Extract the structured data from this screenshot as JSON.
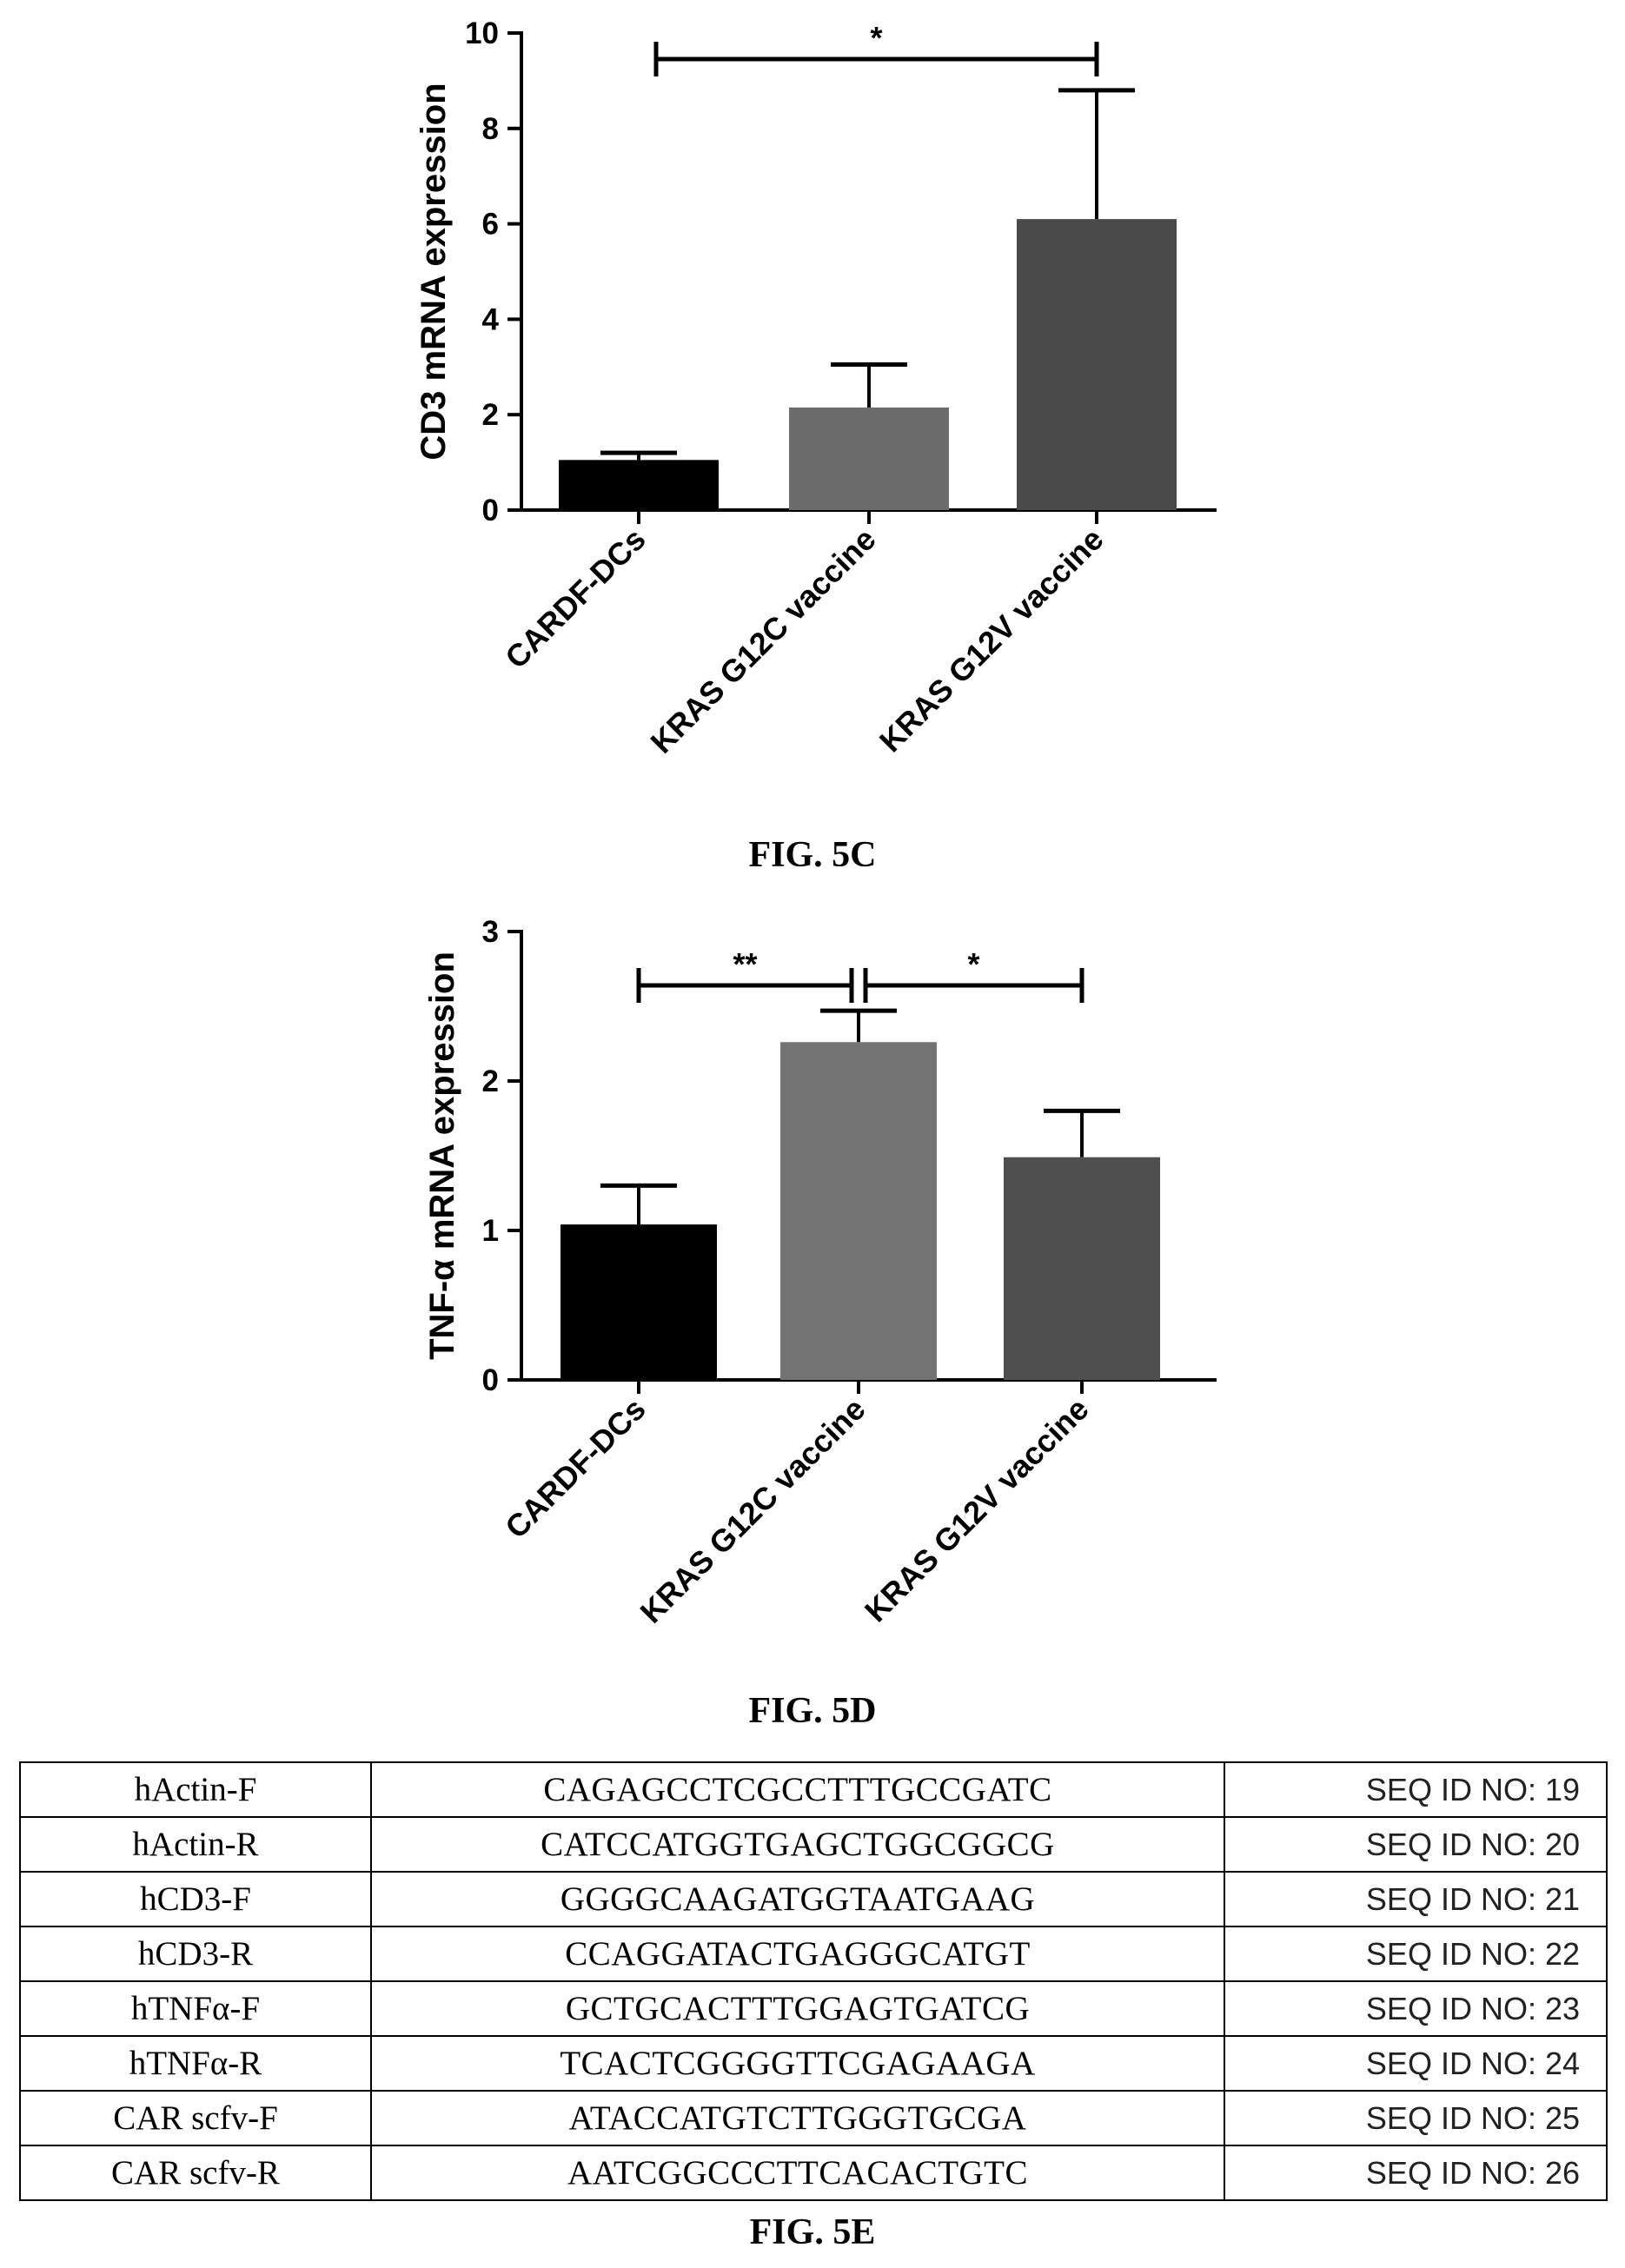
{
  "chart_data": [
    {
      "type": "bar",
      "categories": [
        "CARDF-DCs",
        "KRAS G12C vaccine",
        "KRAS G12V vaccine"
      ],
      "values": [
        1.05,
        2.15,
        6.1
      ],
      "errors": [
        0.15,
        0.9,
        2.7
      ],
      "bar_colors": [
        "#000000",
        "#6b6b6b",
        "#4a4a4a"
      ],
      "ylabel": "CD3 mRNA expression",
      "ylim": [
        0,
        10
      ],
      "yticks": [
        0,
        2,
        4,
        6,
        8,
        10
      ],
      "grid": false,
      "significance": [
        {
          "from": 0,
          "to": 2,
          "label": "*"
        }
      ],
      "caption": "FIG. 5C"
    },
    {
      "type": "bar",
      "categories": [
        "CARDF-DCs",
        "KRAS G12C vaccine",
        "KRAS G12V vaccine"
      ],
      "values": [
        1.04,
        2.26,
        1.49
      ],
      "errors": [
        0.26,
        0.21,
        0.31
      ],
      "bar_colors": [
        "#000000",
        "#737373",
        "#4f4f4f"
      ],
      "ylabel": "TNF-α mRNA expression",
      "ylim": [
        0,
        3
      ],
      "yticks": [
        0,
        1,
        2,
        3
      ],
      "grid": false,
      "significance": [
        {
          "from": 0,
          "to": 1,
          "label": "**"
        },
        {
          "from": 1,
          "to": 2,
          "label": "*"
        }
      ],
      "caption": "FIG. 5D"
    }
  ],
  "primers": [
    {
      "name": "hActin-F",
      "sequence": "CAGAGCCTCGCCTTTGCCGATC",
      "seq_id": "SEQ ID NO: 19"
    },
    {
      "name": "hActin-R",
      "sequence": "CATCCATGGTGAGCTGGCGGCG",
      "seq_id": "SEQ ID NO: 20"
    },
    {
      "name": "hCD3-F",
      "sequence": "GGGGCAAGATGGTAATGAAG",
      "seq_id": "SEQ ID NO: 21"
    },
    {
      "name": "hCD3-R",
      "sequence": "CCAGGATACTGAGGGCATGT",
      "seq_id": "SEQ ID NO: 22"
    },
    {
      "name": "hTNFα-F",
      "sequence": "GCTGCACTTTGGAGTGATCG",
      "seq_id": "SEQ ID NO: 23"
    },
    {
      "name": "hTNFα-R",
      "sequence": "TCACTCGGGGTTCGAGAAGA",
      "seq_id": "SEQ ID NO: 24"
    },
    {
      "name": "CAR scfv-F",
      "sequence": "ATACCATGTCTTGGGTGCGA",
      "seq_id": "SEQ ID NO: 25"
    },
    {
      "name": "CAR scfv-R",
      "sequence": "AATCGGCCCTTCACACTGTC",
      "seq_id": "SEQ ID NO: 26"
    }
  ],
  "captions": {
    "fig_c": "FIG. 5C",
    "fig_d": "FIG. 5D",
    "fig_e": "FIG. 5E"
  }
}
